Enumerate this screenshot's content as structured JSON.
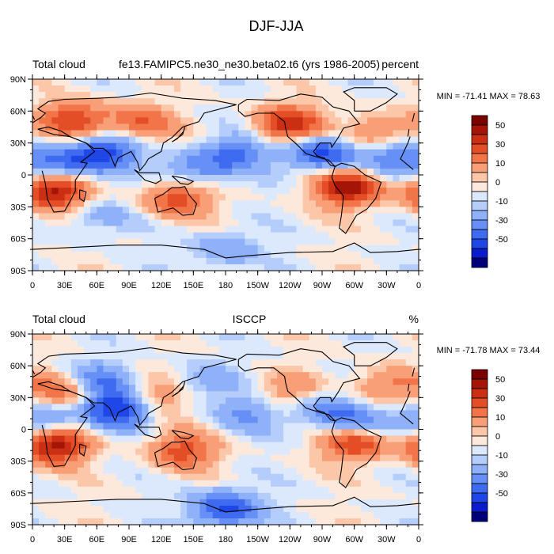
{
  "page_title": "DJF-JJA",
  "chart_data": [
    {
      "type": "heatmap",
      "id": "panel-model",
      "left_label": "Total cloud",
      "center_label": "fe13.FAMIPC5.ne30_ne30.beta02.t6 (yrs 1986-2005)",
      "right_label": "percent",
      "min_max_label": "MIN = -71.41 MAX =  78.63",
      "min": -71.41,
      "max": 78.63,
      "x_ticks": [
        "0",
        "30E",
        "60E",
        "90E",
        "120E",
        "150E",
        "180",
        "150W",
        "120W",
        "90W",
        "60W",
        "30W",
        "0"
      ],
      "y_ticks": [
        "90N",
        "60N",
        "30N",
        "0",
        "30S",
        "60S",
        "90S"
      ],
      "xlim": [
        0,
        360
      ],
      "ylim": [
        -90,
        90
      ],
      "colorbar_levels": [
        -60,
        -50,
        -40,
        -30,
        -20,
        -10,
        -5,
        0,
        5,
        10,
        20,
        30,
        40,
        50,
        60
      ],
      "colorbar_labels": [
        "50",
        "30",
        "10",
        "0",
        "-10",
        "-30",
        "-50"
      ],
      "anomalies": [
        {
          "lon": 40,
          "lat": 52,
          "value": 40
        },
        {
          "lon": 100,
          "lat": 48,
          "value": 30
        },
        {
          "lon": 20,
          "lat": -15,
          "value": 55
        },
        {
          "lon": 135,
          "lat": -22,
          "value": 35
        },
        {
          "lon": 240,
          "lat": 48,
          "value": 45
        },
        {
          "lon": 295,
          "lat": -12,
          "value": 55
        },
        {
          "lon": 320,
          "lat": 40,
          "value": 25
        },
        {
          "lon": 190,
          "lat": 20,
          "value": -30
        },
        {
          "lon": 270,
          "lat": 20,
          "value": -45
        },
        {
          "lon": 70,
          "lat": 22,
          "value": -40
        },
        {
          "lon": 30,
          "lat": 10,
          "value": -35
        },
        {
          "lon": 150,
          "lat": 5,
          "value": -25
        },
        {
          "lon": 180,
          "lat": -70,
          "value": -20
        },
        {
          "lon": 60,
          "lat": -40,
          "value": -15
        },
        {
          "lon": 340,
          "lat": 15,
          "value": -30
        }
      ]
    },
    {
      "type": "heatmap",
      "id": "panel-obs",
      "left_label": "Total cloud",
      "center_label": "ISCCP",
      "right_label": "%",
      "min_max_label": "MIN = -71.78 MAX =  73.44",
      "min": -71.78,
      "max": 73.44,
      "x_ticks": [
        "0",
        "30E",
        "60E",
        "90E",
        "120E",
        "150E",
        "180",
        "150W",
        "120W",
        "90W",
        "60W",
        "30W",
        "0"
      ],
      "y_ticks": [
        "90N",
        "60N",
        "30N",
        "0",
        "30S",
        "60S",
        "90S"
      ],
      "xlim": [
        0,
        360
      ],
      "ylim": [
        -90,
        90
      ],
      "colorbar_levels": [
        -60,
        -50,
        -40,
        -30,
        -20,
        -10,
        -5,
        0,
        5,
        10,
        20,
        30,
        40,
        50,
        60
      ],
      "colorbar_labels": [
        "50",
        "30",
        "10",
        "0",
        "-10",
        "-30",
        "-50"
      ],
      "anomalies": [
        {
          "lon": 30,
          "lat": 35,
          "value": 30
        },
        {
          "lon": 110,
          "lat": 30,
          "value": 25
        },
        {
          "lon": 20,
          "lat": -15,
          "value": 55
        },
        {
          "lon": 140,
          "lat": -20,
          "value": 35
        },
        {
          "lon": 300,
          "lat": -12,
          "value": 45
        },
        {
          "lon": 240,
          "lat": 35,
          "value": 20
        },
        {
          "lon": 330,
          "lat": 40,
          "value": 25
        },
        {
          "lon": 80,
          "lat": 20,
          "value": -55
        },
        {
          "lon": 60,
          "lat": 45,
          "value": -30
        },
        {
          "lon": 200,
          "lat": 15,
          "value": -20
        },
        {
          "lon": 270,
          "lat": 20,
          "value": -25
        },
        {
          "lon": 180,
          "lat": -75,
          "value": -45
        },
        {
          "lon": 10,
          "lat": 10,
          "value": -30
        },
        {
          "lon": 300,
          "lat": 5,
          "value": -30
        },
        {
          "lon": 160,
          "lat": 45,
          "value": -15
        }
      ]
    }
  ]
}
